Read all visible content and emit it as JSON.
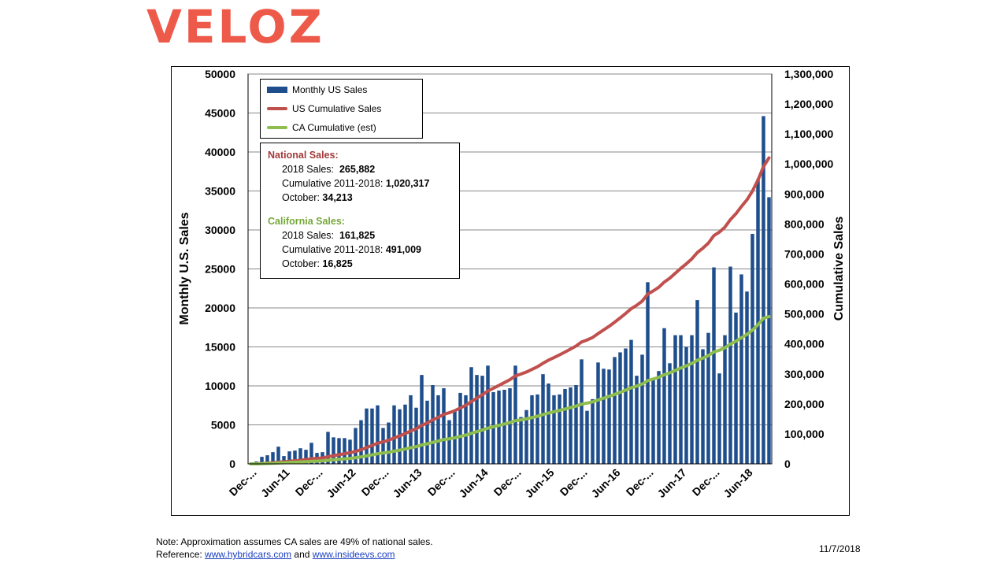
{
  "logo": "VELOZ",
  "chart_data": {
    "type": "bar",
    "title": "",
    "ylabel": "Monthly U.S. Sales",
    "y2label": "Cumulative Sales",
    "ylim": [
      0,
      50000
    ],
    "y2lim": [
      0,
      1300000
    ],
    "yticks": [
      "0",
      "5000",
      "10000",
      "15000",
      "20000",
      "25000",
      "30000",
      "35000",
      "40000",
      "45000",
      "50000"
    ],
    "y2ticks": [
      "0",
      "100,000",
      "200,000",
      "300,000",
      "400,000",
      "500,000",
      "600,000",
      "700,000",
      "800,000",
      "900,000",
      "1,000,000",
      "1,100,000",
      "1,200,000",
      "1,300,000"
    ],
    "xticks": [
      {
        "index": 0,
        "label": "Dec-..."
      },
      {
        "index": 6,
        "label": "Jun-11"
      },
      {
        "index": 12,
        "label": "Dec-..."
      },
      {
        "index": 18,
        "label": "Jun-12"
      },
      {
        "index": 24,
        "label": "Dec-..."
      },
      {
        "index": 30,
        "label": "Jun-13"
      },
      {
        "index": 36,
        "label": "Dec-..."
      },
      {
        "index": 42,
        "label": "Jun-14"
      },
      {
        "index": 48,
        "label": "Dec-..."
      },
      {
        "index": 54,
        "label": "Jun-15"
      },
      {
        "index": 60,
        "label": "Dec-..."
      },
      {
        "index": 66,
        "label": "Jun-16"
      },
      {
        "index": 72,
        "label": "Dec-..."
      },
      {
        "index": 78,
        "label": "Jun-17"
      },
      {
        "index": 84,
        "label": "Dec-..."
      },
      {
        "index": 90,
        "label": "Jun-18"
      }
    ],
    "series": [
      {
        "name": "Monthly US Sales",
        "type": "bar",
        "color": "#1f4e8c",
        "values": [
          10,
          300,
          900,
          1100,
          1500,
          2200,
          1000,
          1600,
          1700,
          2000,
          1800,
          2700,
          1400,
          1500,
          4100,
          3400,
          3300,
          3300,
          3100,
          4600,
          5600,
          7100,
          7100,
          7500,
          4600,
          5300,
          7500,
          7000,
          7600,
          8800,
          7200,
          11400,
          8100,
          10100,
          8800,
          9700,
          5600,
          6800,
          9100,
          8800,
          12400,
          11400,
          11300,
          12600,
          9200,
          9400,
          9500,
          9700,
          12600,
          6000,
          6900,
          8800,
          8900,
          11500,
          10300,
          8800,
          8900,
          9600,
          9800,
          10100,
          13400,
          6800,
          8300,
          13000,
          12200,
          12100,
          13700,
          14300,
          14800,
          15900,
          11300,
          14000,
          23300,
          10800,
          11900,
          17400,
          12900,
          16500,
          16500,
          15000,
          16500,
          21000,
          14700,
          16800,
          25200,
          11600,
          16500,
          25300,
          19400,
          24300,
          22100,
          29500,
          36500,
          44600,
          34200
        ]
      },
      {
        "name": "US Cumulative Sales",
        "type": "line",
        "axis": "y2",
        "color": "#c0504d",
        "values": [
          10,
          310,
          1210,
          2310,
          3810,
          6010,
          7010,
          8610,
          10310,
          12310,
          14110,
          16810,
          18210,
          19710,
          23810,
          27210,
          30510,
          33810,
          36910,
          41510,
          47110,
          54210,
          61310,
          68810,
          73410,
          78710,
          86210,
          93210,
          100810,
          109610,
          116810,
          128210,
          136310,
          146410,
          155210,
          164910,
          170510,
          177310,
          186410,
          195210,
          207610,
          219010,
          230310,
          242910,
          252110,
          261510,
          271010,
          280710,
          293310,
          299310,
          306210,
          315010,
          323910,
          335410,
          345710,
          354510,
          363410,
          373010,
          382810,
          392910,
          406310,
          413110,
          421410,
          434410,
          446610,
          458710,
          472410,
          486710,
          501510,
          517410,
          528710,
          542710,
          566010,
          576810,
          588710,
          606110,
          619010,
          635510,
          652010,
          667010,
          683510,
          704510,
          719210,
          736010,
          761210,
          772810,
          789310,
          814610,
          834010,
          858310,
          880410,
          909910,
          946410,
          991010,
          1020317
        ]
      },
      {
        "name": "CA Cumulative (est)",
        "type": "line",
        "axis": "y2",
        "color": "#8fbe4f",
        "values": [
          5,
          150,
          600,
          1150,
          1900,
          3000,
          3500,
          4300,
          5100,
          6100,
          7000,
          8300,
          9000,
          9700,
          11700,
          13400,
          15000,
          16600,
          18100,
          20400,
          23100,
          26600,
          30100,
          33800,
          36000,
          38600,
          42300,
          45700,
          49400,
          53700,
          57200,
          62800,
          66800,
          71700,
          76000,
          80800,
          83500,
          86900,
          91400,
          95700,
          101800,
          107300,
          112800,
          119000,
          123500,
          128100,
          132800,
          137500,
          143700,
          146600,
          150000,
          154300,
          158700,
          164300,
          169400,
          173700,
          178100,
          182800,
          187600,
          192600,
          199100,
          202500,
          206600,
          213000,
          218900,
          224900,
          231600,
          238600,
          245900,
          253700,
          259200,
          266100,
          277500,
          282800,
          288600,
          297100,
          303400,
          311500,
          319600,
          326900,
          335000,
          345300,
          352500,
          360800,
          373100,
          378800,
          386900,
          399300,
          408800,
          420700,
          431500,
          446000,
          463900,
          485700,
          491009
        ]
      }
    ],
    "legend": "top-left inside plot"
  },
  "info_box": {
    "national_title": "National Sales:",
    "nat_2018_label": "2018 Sales:",
    "nat_2018_value": "265,882",
    "nat_cum_label": "Cumulative 2011-2018:",
    "nat_cum_value": "1,020,317",
    "nat_oct_label": "October:",
    "nat_oct_value": "34,213",
    "ca_title": "California Sales:",
    "ca_2018_label": "2018 Sales:",
    "ca_2018_value": "161,825",
    "ca_cum_label": "Cumulative 2011-2018:",
    "ca_cum_value": "491,009",
    "ca_oct_label": "October:",
    "ca_oct_value": "16,825"
  },
  "footer": {
    "note": "Note:  Approximation assumes CA sales are 49% of national sales.",
    "reference_prefix": "Reference: ",
    "link1": "www.hybridcars.com",
    "and_text": " and ",
    "link2": "www.insideevs.com",
    "date": "11/7/2018"
  }
}
